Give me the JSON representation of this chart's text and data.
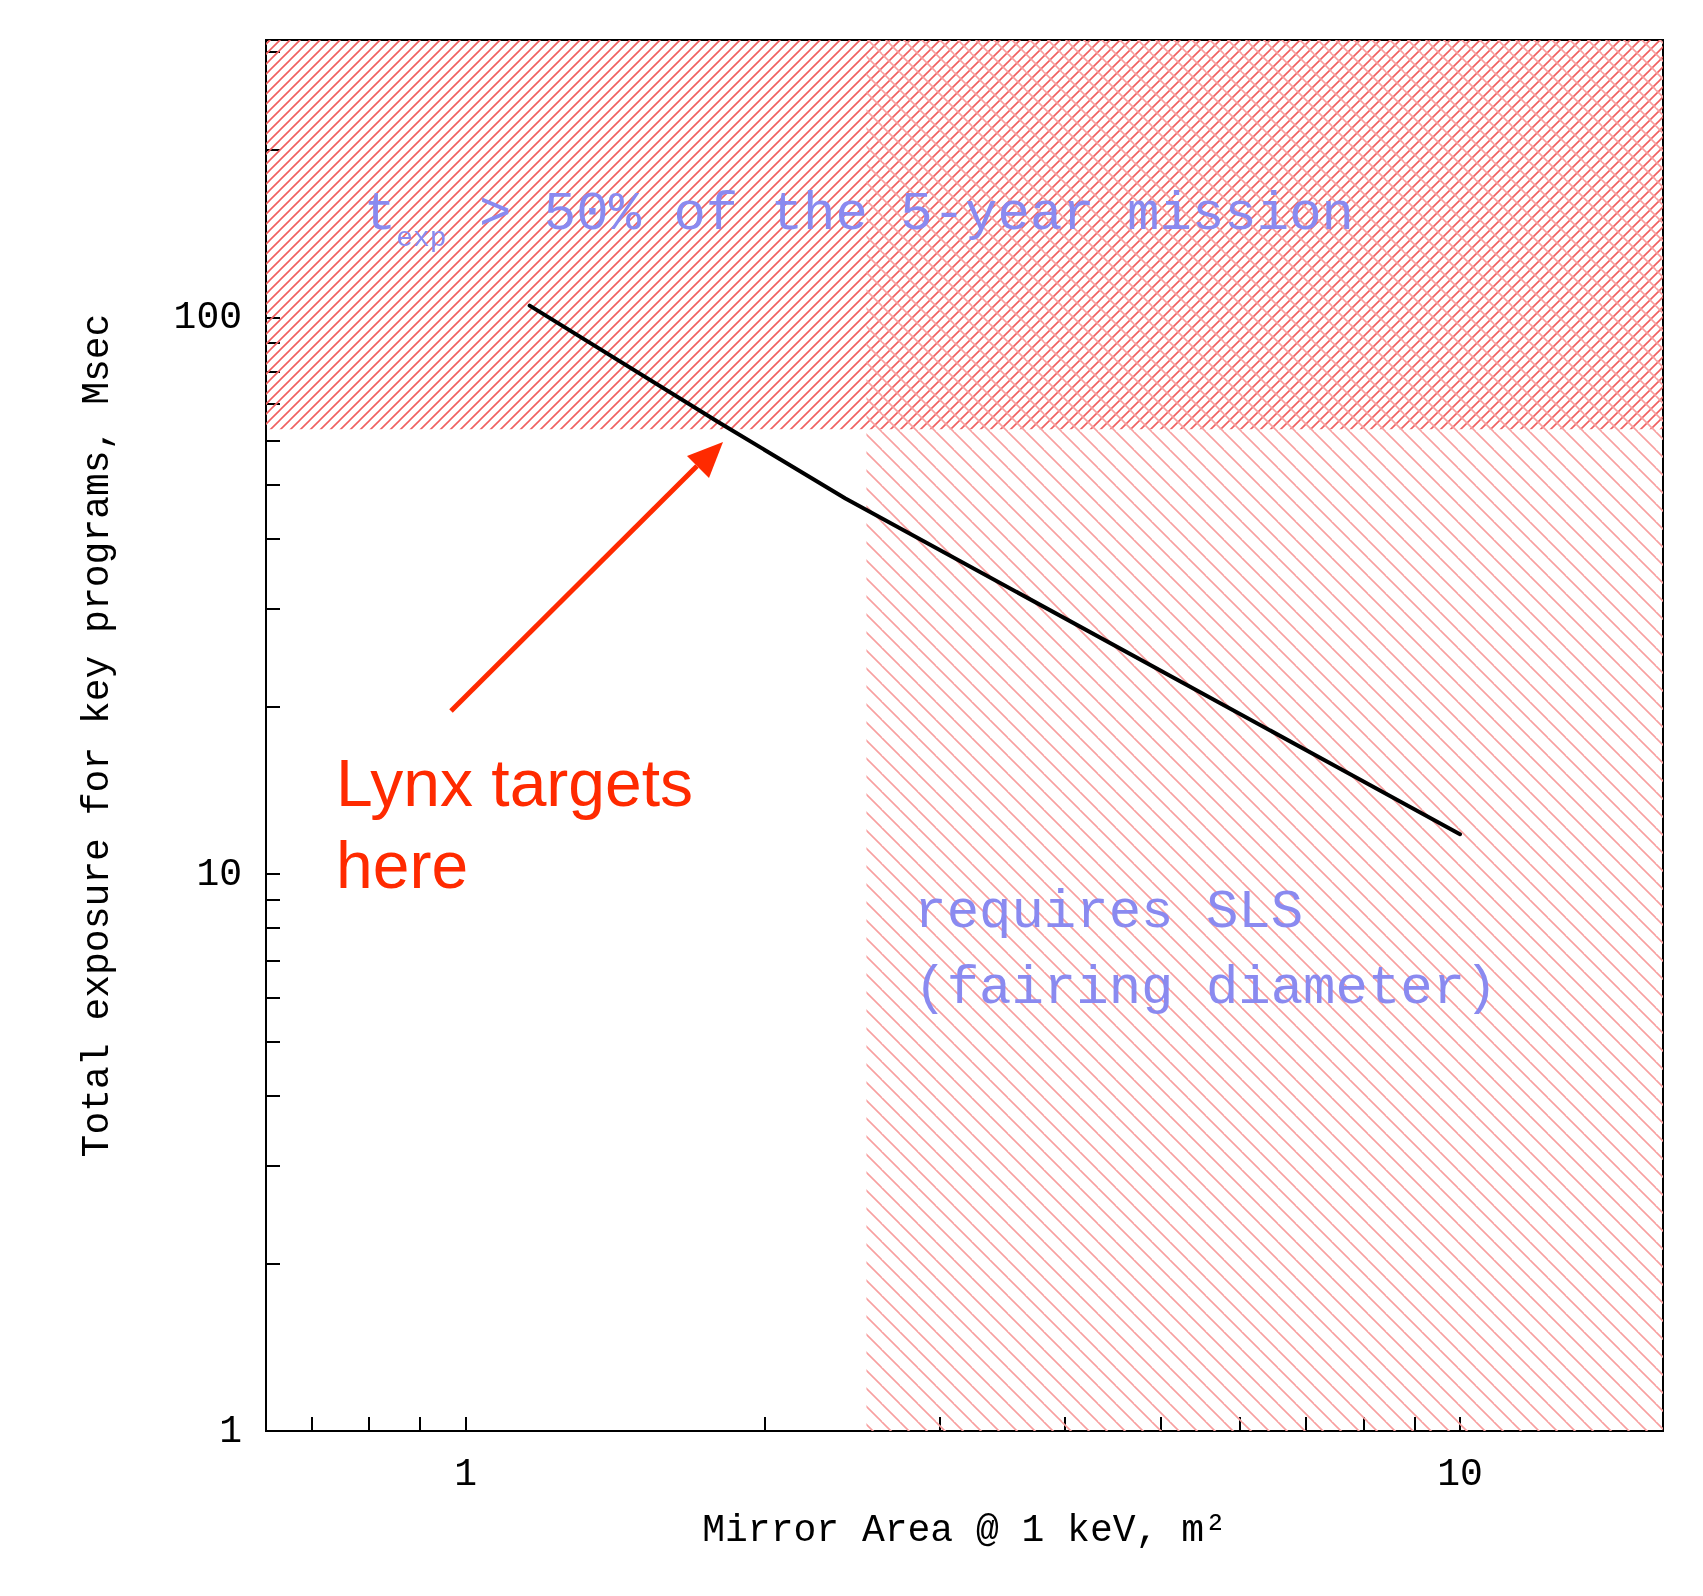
{
  "chart_data": {
    "type": "line",
    "xlabel": "Mirror Area @ 1 keV, m²",
    "ylabel": "Total exposure for key programs, Msec",
    "log": "xy",
    "xlim": [
      0.63,
      16
    ],
    "ylim": [
      1,
      315
    ],
    "xticks": [
      {
        "value": 0.7,
        "label": null
      },
      {
        "value": 0.8,
        "label": null
      },
      {
        "value": 0.9,
        "label": null
      },
      1,
      {
        "value": 2,
        "label": null
      },
      {
        "value": 3,
        "label": null
      },
      {
        "value": 4,
        "label": null
      },
      {
        "value": 5,
        "label": null
      },
      {
        "value": 6,
        "label": null
      },
      {
        "value": 7,
        "label": null
      },
      {
        "value": 8,
        "label": null
      },
      {
        "value": 9,
        "label": null
      },
      10
    ],
    "yticks": [
      1,
      {
        "value": 2,
        "label": null
      },
      {
        "value": 3,
        "label": null
      },
      {
        "value": 4,
        "label": null
      },
      {
        "value": 5,
        "label": null
      },
      {
        "value": 6,
        "label": null
      },
      {
        "value": 7,
        "label": null
      },
      {
        "value": 8,
        "label": null
      },
      {
        "value": 9,
        "label": null
      },
      10,
      {
        "value": 20,
        "label": null
      },
      {
        "value": 30,
        "label": null
      },
      {
        "value": 40,
        "label": null
      },
      {
        "value": 50,
        "label": null
      },
      {
        "value": 60,
        "label": null
      },
      {
        "value": 70,
        "label": null
      },
      {
        "value": 80,
        "label": null
      },
      {
        "value": 90,
        "label": null
      },
      100,
      {
        "value": 200,
        "label": null
      },
      {
        "value": 300,
        "label": null
      }
    ],
    "series": [
      {
        "color": "#000000",
        "x": [
          1.16,
          1.8,
          2.41,
          10
        ],
        "values": [
          105,
          64.7,
          47.3,
          11.8
        ]
      }
    ],
    "bands": [
      {
        "axis": "y",
        "from": 63,
        "to": 315,
        "label": "t$_{exp}$ > 50% of the 5-year mission",
        "color": "#f06060"
      },
      {
        "axis": "x",
        "from": 2.53,
        "to": 16,
        "label": "requires SLS\n(fairing diameter)",
        "color": "#f8a0a0"
      }
    ],
    "annotations": [
      "Lynx targets\nhere"
    ],
    "grid": false,
    "marker": "none",
    "line_style": "solid"
  }
}
